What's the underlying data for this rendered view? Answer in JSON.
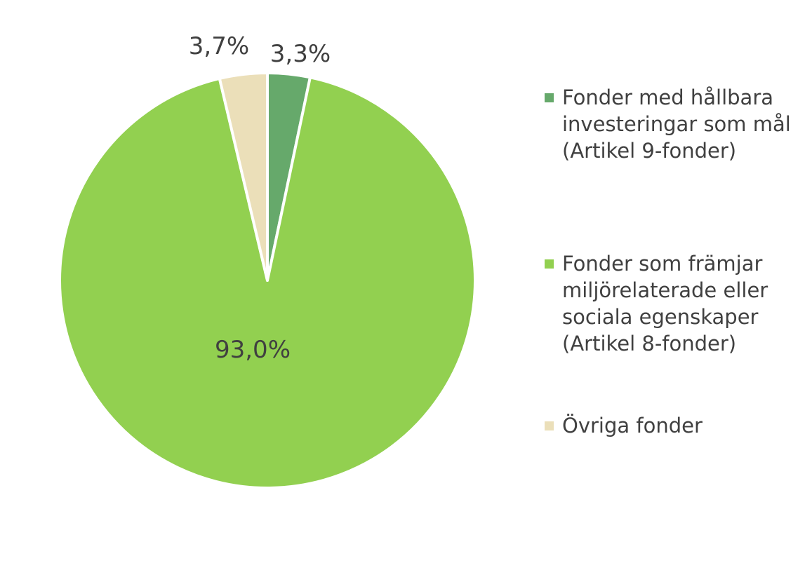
{
  "chart_data": {
    "type": "pie",
    "title": "",
    "categories": [
      "Fonder med hållbara investeringar som mål (Artikel 9-fonder)",
      "Fonder som främjar miljörelaterade eller sociala egenskaper (Artikel 8-fonder)",
      "Övriga fonder"
    ],
    "values": [
      3.3,
      93.0,
      3.7
    ],
    "data_labels": [
      "3,3%",
      "93,0%",
      "3,7%"
    ],
    "colors": [
      "#66a96b",
      "#92d050",
      "#ebdfb9"
    ],
    "legend_position": "right",
    "start_angle": "12 o'clock",
    "direction": "clockwise"
  },
  "legend": {
    "items": [
      {
        "label": "Fonder med hållbara investeringar som mål (Artikel 9-fonder)",
        "color": "#66a96b"
      },
      {
        "label": "Fonder som främjar miljörelaterade eller sociala egenskaper (Artikel 8-fonder)",
        "color": "#92d050"
      },
      {
        "label": "Övriga fonder",
        "color": "#ebdfb9"
      }
    ]
  }
}
